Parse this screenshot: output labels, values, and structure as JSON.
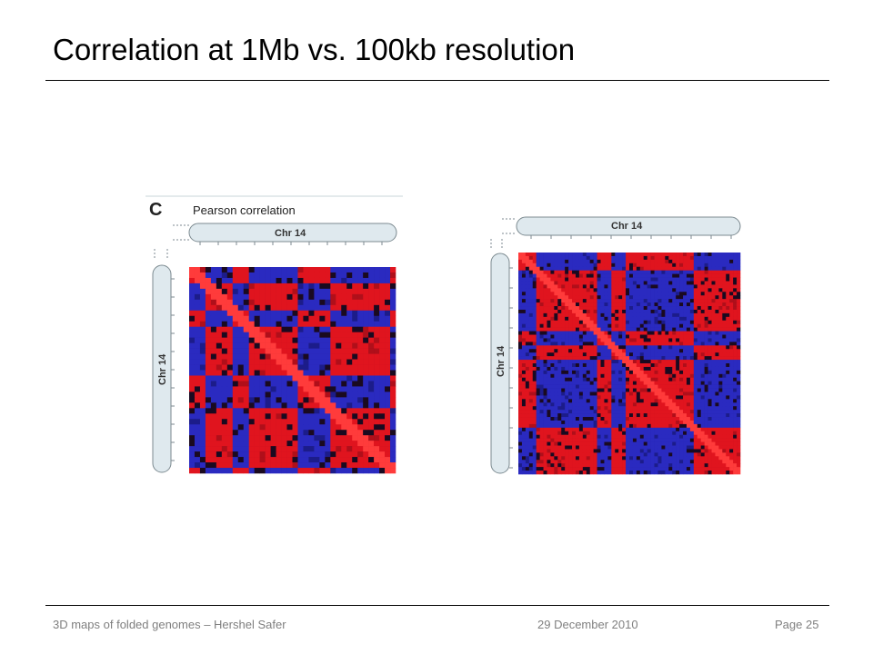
{
  "slide": {
    "title": "Correlation at 1Mb vs. 100kb resolution"
  },
  "figure_left": {
    "panel_letter": "C",
    "caption": "Pearson correlation",
    "chromosome_label_top": "Chr 14",
    "chromosome_label_side": "Chr 14"
  },
  "figure_right": {
    "chromosome_label_top": "Chr 14",
    "chromosome_label_side": "Chr 14"
  },
  "footer": {
    "left": "3D maps of folded genomes – Hershel Safer",
    "center": "29 December 2010",
    "right": "Page 25"
  },
  "colors": {
    "positive": "#e0141e",
    "negative": "#2a2ac0",
    "dark": "#1a0a20",
    "bar": "#dfe9ee"
  },
  "icons": [
    "axis-break-icon"
  ]
}
